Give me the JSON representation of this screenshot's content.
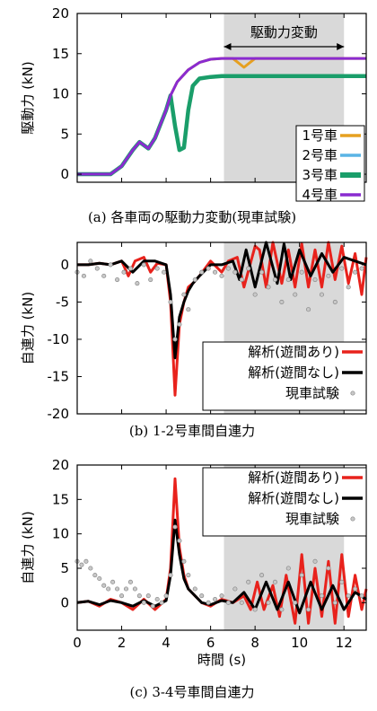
{
  "chart_data": [
    {
      "type": "line",
      "caption": "(a)  各車両の駆動力変動(現車試験)",
      "ylabel": "駆動力 (kN)",
      "xlabel": "",
      "xlim": [
        0,
        13
      ],
      "ylim": [
        -1,
        20
      ],
      "xticks": [],
      "yticks": [
        "0",
        "5",
        "10",
        "15",
        "20"
      ],
      "shaded_region": {
        "x": [
          6.6,
          12.0
        ],
        "label": "駆動力変動"
      },
      "legend_position": "bottom-right",
      "colors": {
        "1号車": "#e6a020",
        "2号車": "#5ab4e5",
        "3号車": "#1a9e6a",
        "4号車": "#8a2bd0"
      },
      "series": [
        {
          "name": "1号車",
          "x": [
            0,
            1.5,
            2,
            2.5,
            2.8,
            3.2,
            3.5,
            4,
            4.2,
            4.5,
            5,
            5.5,
            6,
            6.5,
            7,
            7.5,
            8,
            9,
            13
          ],
          "y": [
            0,
            0,
            1,
            3,
            4,
            3.2,
            4.5,
            8,
            9.8,
            11.5,
            13,
            13.9,
            14.3,
            14.4,
            14.4,
            13.3,
            14.4,
            14.4,
            14.4
          ]
        },
        {
          "name": "2号車",
          "x": [
            0,
            1.5,
            2,
            2.5,
            2.8,
            3.2,
            3.5,
            4,
            4.2,
            4.4,
            4.6,
            4.8,
            5,
            5.2,
            5.5,
            6,
            6.5,
            7,
            13
          ],
          "y": [
            0,
            0,
            1,
            3,
            4,
            3.2,
            4.5,
            8,
            9.8,
            6,
            3,
            3.3,
            8,
            11,
            11.9,
            12.1,
            12.2,
            12.2,
            12.2
          ]
        },
        {
          "name": "3号車",
          "x": [
            0,
            1.5,
            2,
            2.5,
            2.8,
            3.2,
            3.5,
            4,
            4.2,
            4.4,
            4.6,
            4.8,
            5,
            5.2,
            5.5,
            6,
            6.5,
            7,
            13
          ],
          "y": [
            0,
            0,
            1,
            3,
            4,
            3.2,
            4.5,
            8,
            9.8,
            6,
            3,
            3.3,
            8,
            11,
            11.9,
            12.1,
            12.2,
            12.2,
            12.2
          ]
        },
        {
          "name": "4号車",
          "x": [
            0,
            1.5,
            2,
            2.5,
            2.8,
            3.2,
            3.5,
            4,
            4.2,
            4.5,
            5,
            5.5,
            6,
            6.5,
            7,
            13
          ],
          "y": [
            0,
            0,
            1,
            3,
            4,
            3.2,
            4.5,
            8,
            9.8,
            11.5,
            13,
            13.9,
            14.3,
            14.4,
            14.4,
            14.4
          ]
        }
      ]
    },
    {
      "type": "line",
      "caption": "(b)  1-2号車間自連力",
      "ylabel": "自連力 (kN)",
      "xlabel": "",
      "xlim": [
        0,
        13
      ],
      "ylim": [
        -20,
        3
      ],
      "xticks": [],
      "yticks": [
        "0",
        "-5",
        "-10",
        "-15",
        "-20"
      ],
      "shaded_region": {
        "x": [
          6.6,
          12.0
        ]
      },
      "legend_position": "bottom-right",
      "series": [
        {
          "name": "解析(遊間あり)",
          "color": "#e8221c",
          "x": [
            0,
            0.5,
            1,
            1.5,
            2,
            2.3,
            2.6,
            3,
            3.3,
            3.6,
            4,
            4.2,
            4.4,
            4.6,
            4.8,
            5,
            5.2,
            5.5,
            6,
            6.5,
            6.8,
            7.2,
            7.5,
            8,
            8.2,
            8.5,
            8.8,
            9.2,
            9.5,
            9.8,
            10.1,
            10.4,
            10.7,
            11,
            11.3,
            11.6,
            11.9,
            12.2,
            12.5,
            12.8,
            13
          ],
          "y": [
            0,
            0,
            0.2,
            0,
            0.5,
            -1.5,
            0.5,
            1,
            -1,
            0.2,
            0,
            -5,
            -17.5,
            -8,
            -5,
            -3,
            -2.5,
            -1.5,
            0.5,
            -1,
            0.5,
            1,
            -3,
            2.5,
            2,
            -3,
            3,
            -2.5,
            2,
            -3,
            2.8,
            -3,
            2,
            -3,
            3,
            -2,
            2.5,
            -2.5,
            1.5,
            -4,
            1
          ]
        },
        {
          "name": "解析(遊間なし)",
          "color": "#000000",
          "x": [
            0,
            0.5,
            1,
            1.5,
            2,
            2.5,
            3,
            3.5,
            4,
            4.2,
            4.4,
            4.6,
            4.8,
            5,
            5.2,
            5.5,
            6,
            6.5,
            7,
            7.3,
            7.6,
            8,
            8.5,
            9,
            9.3,
            9.6,
            10,
            10.5,
            11,
            11.5,
            12,
            12.5,
            13
          ],
          "y": [
            0,
            0,
            0.2,
            0,
            0.5,
            -1,
            0.5,
            0.5,
            0,
            -4,
            -12.5,
            -7,
            -5,
            -3.5,
            -2.5,
            -1.5,
            0,
            0,
            0.5,
            -2,
            2,
            -3,
            3,
            -2.5,
            2.8,
            -2,
            2,
            -1.5,
            1.5,
            -1,
            1,
            0.5,
            0
          ]
        },
        {
          "name": "現車試験",
          "color": "#999999",
          "type": "scatter",
          "x": [
            0,
            0.3,
            0.6,
            0.9,
            1.2,
            1.5,
            1.8,
            2.1,
            2.4,
            2.7,
            3,
            3.3,
            3.6,
            3.9,
            4.2,
            4.4,
            4.6,
            4.8,
            5,
            5.3,
            5.6,
            5.9,
            6.2,
            6.5,
            6.8,
            7.1,
            7.4,
            7.7,
            8,
            8.3,
            8.6,
            8.9,
            9.2,
            9.5,
            9.8,
            10.1,
            10.4,
            10.7,
            11,
            11.3,
            11.6,
            11.9,
            12.2,
            12.5,
            12.8
          ],
          "y": [
            -1,
            -1.5,
            0.5,
            -0.5,
            -1.5,
            0,
            -2,
            -1,
            -0.5,
            -2.5,
            0,
            -2,
            -0.5,
            -1,
            -5,
            -10,
            -8,
            -4,
            -6,
            -2,
            -1,
            -0.5,
            -1,
            -1.5,
            -0.5,
            -1,
            -2,
            -0.5,
            -4,
            -1,
            -3,
            -2,
            -5,
            -2,
            -4,
            -1,
            -6,
            -2,
            -4,
            -1.5,
            -5,
            -0.5,
            -3,
            -1,
            -0.5
          ]
        }
      ]
    },
    {
      "type": "line",
      "caption": "(c)  3-4号車間自連力",
      "ylabel": "自連力 (kN)",
      "xlabel": "時間 (s)",
      "xlim": [
        0,
        13
      ],
      "ylim": [
        -4,
        20
      ],
      "xticks": [
        "0",
        "2",
        "4",
        "6",
        "8",
        "10",
        "12"
      ],
      "yticks": [
        "0",
        "5",
        "10",
        "15",
        "20"
      ],
      "shaded_region": {
        "x": [
          6.6,
          12.0
        ]
      },
      "legend_position": "top-right",
      "series": [
        {
          "name": "解析(遊間あり)",
          "color": "#e8221c",
          "x": [
            0,
            0.5,
            1,
            1.5,
            2,
            2.5,
            3,
            3.5,
            4,
            4.2,
            4.4,
            4.6,
            4.8,
            5,
            5.3,
            5.6,
            6,
            6.5,
            7,
            7.5,
            7.8,
            8.1,
            8.4,
            8.8,
            9.1,
            9.4,
            9.8,
            10.1,
            10.4,
            10.7,
            11,
            11.3,
            11.6,
            11.9,
            12.2,
            12.5,
            12.8,
            13
          ],
          "y": [
            0,
            0.2,
            -0.5,
            0.5,
            0,
            -1,
            0.5,
            -1,
            0.5,
            5,
            18,
            8,
            4,
            2,
            1,
            0,
            -0.5,
            0.5,
            0,
            1,
            -1,
            3,
            -1,
            2.5,
            -2,
            4,
            -3,
            7,
            -3,
            5,
            -2,
            6,
            -3,
            7,
            -2,
            4,
            -1,
            2
          ]
        },
        {
          "name": "解析(遊間なし)",
          "color": "#000000",
          "x": [
            0,
            0.5,
            1,
            1.5,
            2,
            2.5,
            3,
            3.5,
            4,
            4.2,
            4.4,
            4.6,
            4.8,
            5,
            5.3,
            5.6,
            6,
            6.5,
            7,
            7.5,
            8,
            8.5,
            9,
            9.5,
            10,
            10.5,
            11,
            11.5,
            12,
            12.5,
            13
          ],
          "y": [
            0,
            0.2,
            -0.3,
            0.3,
            0,
            -0.5,
            0.3,
            -0.5,
            0.3,
            4,
            12,
            7,
            3.5,
            2,
            1,
            0,
            -0.3,
            0.3,
            0,
            1.5,
            -1,
            3,
            -1,
            3,
            -1.5,
            3,
            -1,
            2.5,
            -1,
            1.5,
            0.5
          ]
        },
        {
          "name": "現車試験",
          "color": "#999999",
          "type": "scatter",
          "x": [
            0,
            0.2,
            0.4,
            0.6,
            0.8,
            1,
            1.2,
            1.4,
            1.6,
            1.8,
            2,
            2.2,
            2.4,
            2.6,
            2.8,
            3,
            3.2,
            3.4,
            3.6,
            3.8,
            4,
            4.2,
            4.4,
            4.6,
            4.8,
            5,
            5.3,
            5.6,
            5.9,
            6.2,
            6.5,
            6.8,
            7.1,
            7.4,
            7.7,
            8,
            8.3,
            8.6,
            8.9,
            9.2,
            9.5,
            9.8,
            10.1,
            10.4,
            10.7,
            11,
            11.3,
            11.6,
            11.9,
            12.2,
            12.5,
            12.8
          ],
          "y": [
            6,
            5.5,
            6,
            5,
            4,
            3.5,
            2.5,
            2,
            3,
            2,
            1,
            2,
            3,
            2,
            1,
            0,
            1,
            -0.5,
            0.5,
            0,
            1,
            4,
            11,
            9,
            6,
            4,
            2,
            1,
            0,
            0.5,
            1,
            0,
            2,
            0,
            3,
            -1,
            4,
            0,
            3,
            -1,
            5,
            0,
            4,
            -1,
            6,
            1,
            5,
            0,
            3,
            1,
            2,
            1
          ]
        }
      ]
    }
  ]
}
